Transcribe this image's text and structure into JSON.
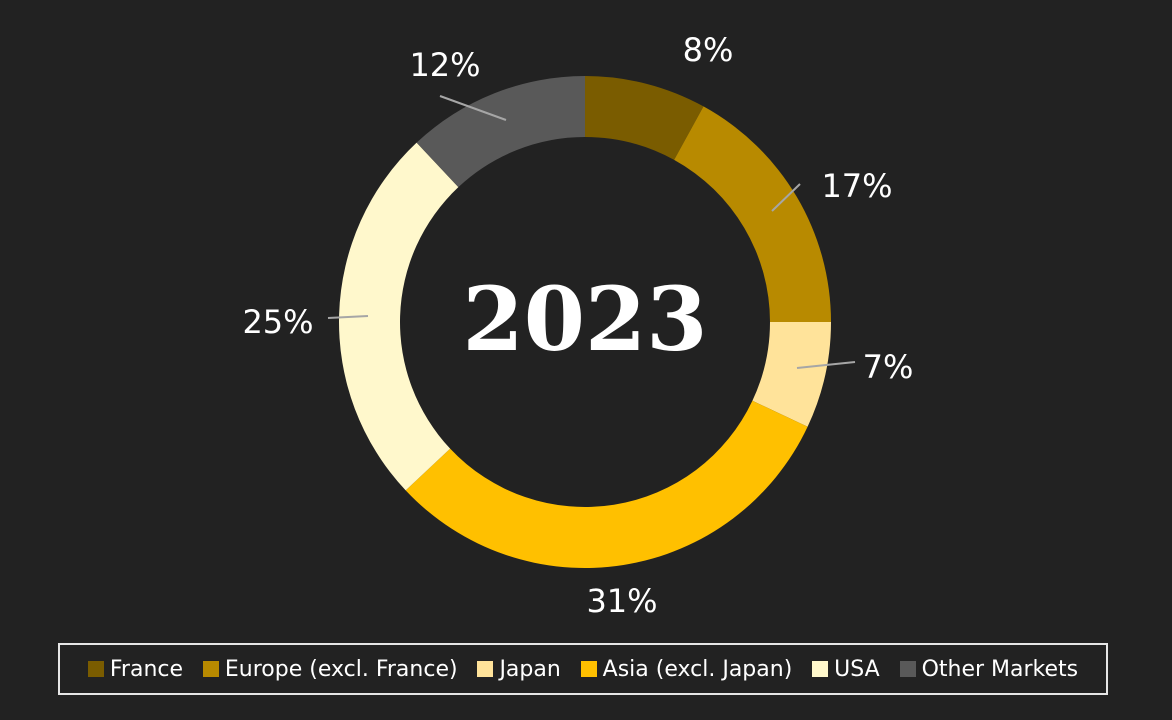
{
  "chart_data": {
    "type": "pie",
    "variant": "donut",
    "center_label": "2023",
    "slices": [
      {
        "label": "France",
        "value": 8,
        "display": "8%",
        "color": "#7a5c00"
      },
      {
        "label": "Europe (excl. France)",
        "value": 17,
        "display": "17%",
        "color": "#b88a00"
      },
      {
        "label": "Japan",
        "value": 7,
        "display": "7%",
        "color": "#ffe39a"
      },
      {
        "label": "Asia (excl. Japan)",
        "value": 31,
        "display": "31%",
        "color": "#ffc000"
      },
      {
        "label": "USA",
        "value": 25,
        "display": "25%",
        "color": "#fff8cc"
      },
      {
        "label": "Other Markets",
        "value": 12,
        "display": "12%",
        "color": "#595959"
      }
    ],
    "legend_position": "bottom"
  }
}
